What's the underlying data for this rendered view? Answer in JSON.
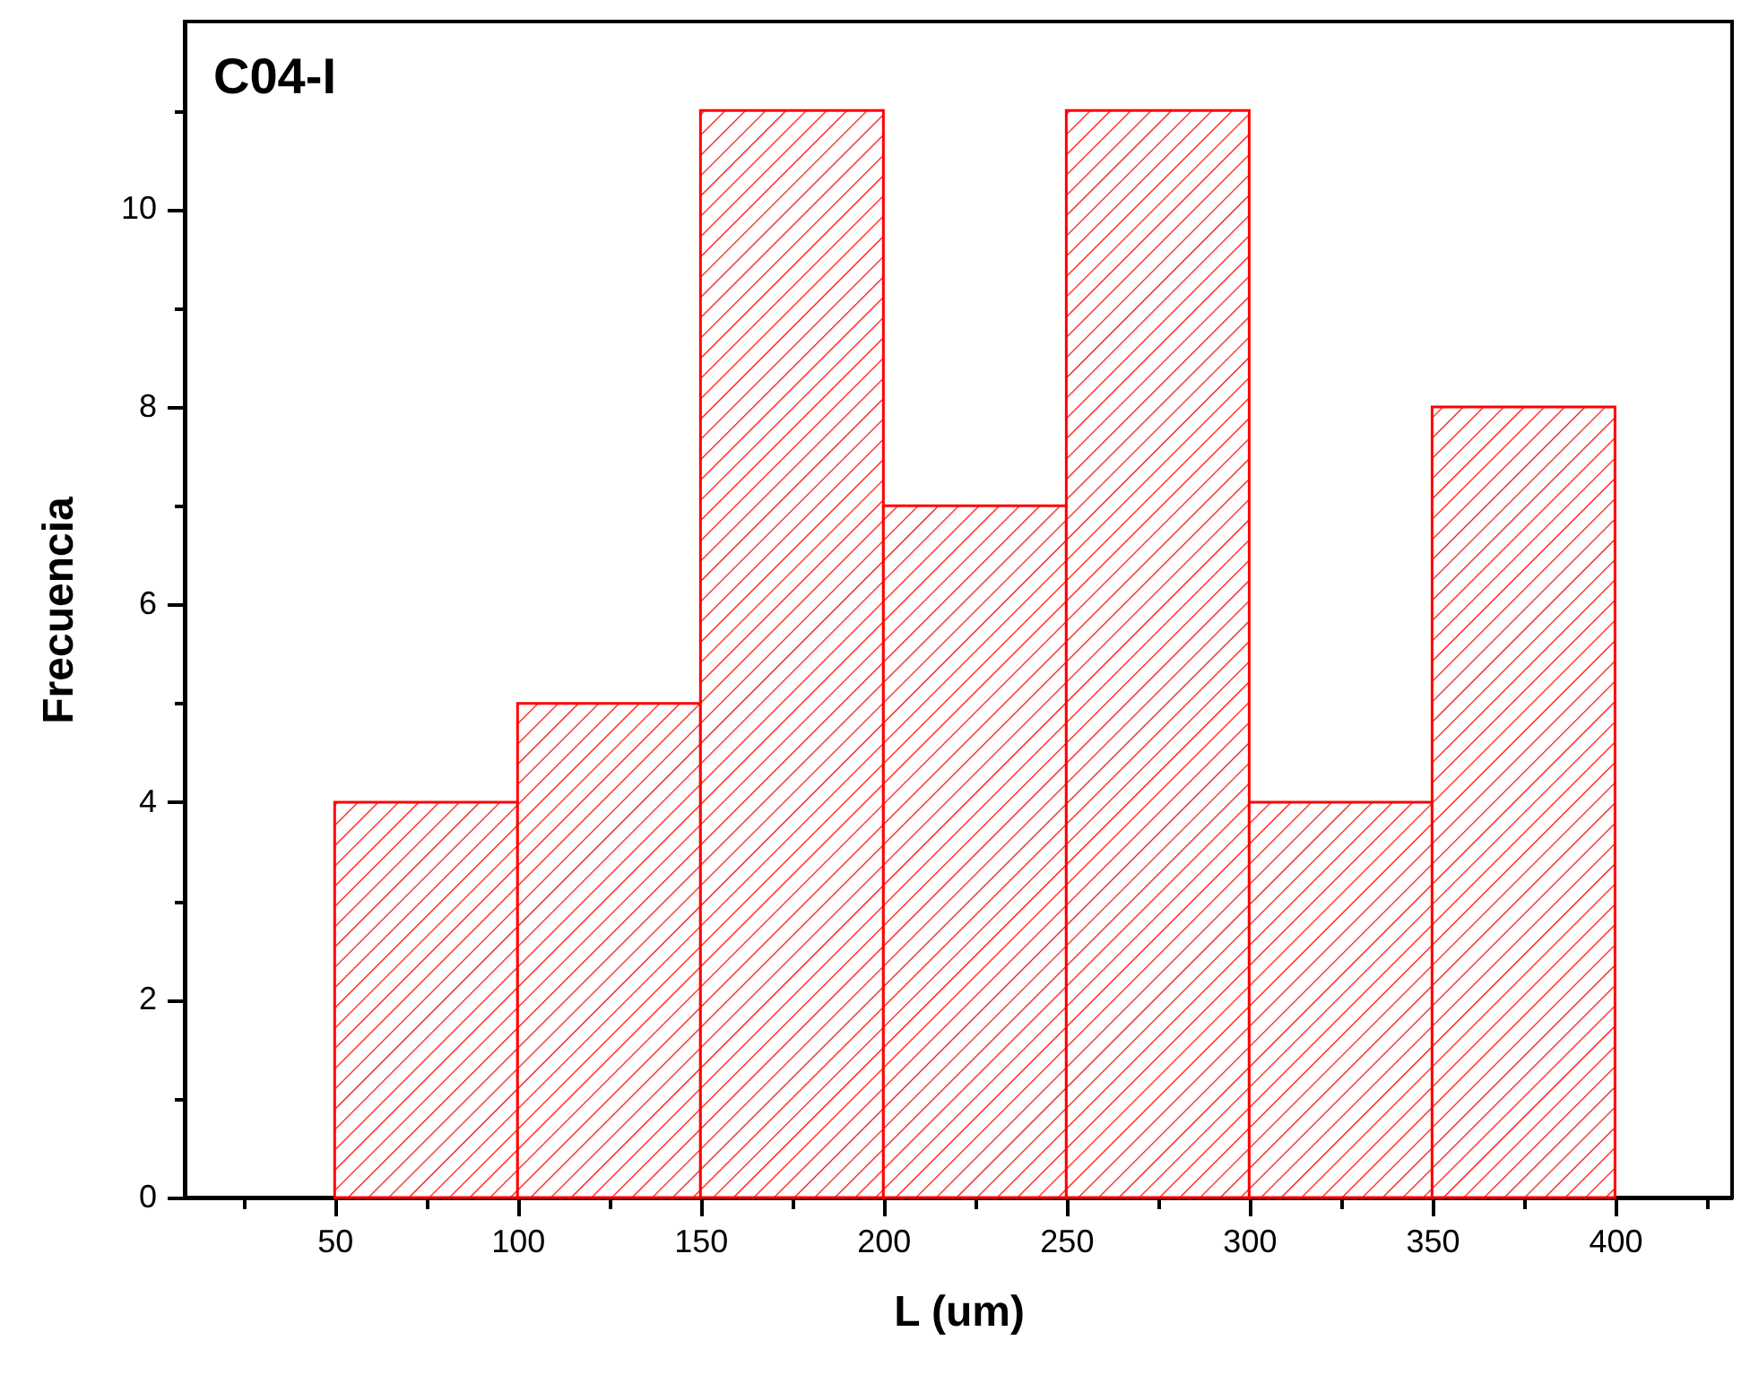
{
  "chart_data": {
    "type": "histogram",
    "annotations": [
      "C04-I"
    ],
    "xlabel": "L (um)",
    "ylabel": "Frecuencia",
    "bins": [
      50,
      100,
      150,
      200,
      250,
      300,
      350,
      400
    ],
    "values": [
      4,
      5,
      11,
      7,
      11,
      4,
      8
    ],
    "color": "#ff0000",
    "xlim": [
      9,
      432
    ],
    "xticks": [
      {
        "value": 25,
        "label": null
      },
      50,
      {
        "value": 75,
        "label": null
      },
      100,
      {
        "value": 125,
        "label": null
      },
      150,
      {
        "value": 175,
        "label": null
      },
      200,
      {
        "value": 225,
        "label": null
      },
      250,
      {
        "value": 275,
        "label": null
      },
      300,
      {
        "value": 325,
        "label": null
      },
      350,
      {
        "value": 375,
        "label": null
      },
      400,
      {
        "value": 425,
        "label": null
      }
    ],
    "ylim": [
      0,
      11.9
    ],
    "yticks": [
      0,
      {
        "value": 1,
        "label": null
      },
      2,
      {
        "value": 3,
        "label": null
      },
      4,
      {
        "value": 5,
        "label": null
      },
      6,
      {
        "value": 7,
        "label": null
      },
      8,
      {
        "value": 9,
        "label": null
      },
      10,
      {
        "value": 11,
        "label": null
      }
    ],
    "grid": false
  }
}
